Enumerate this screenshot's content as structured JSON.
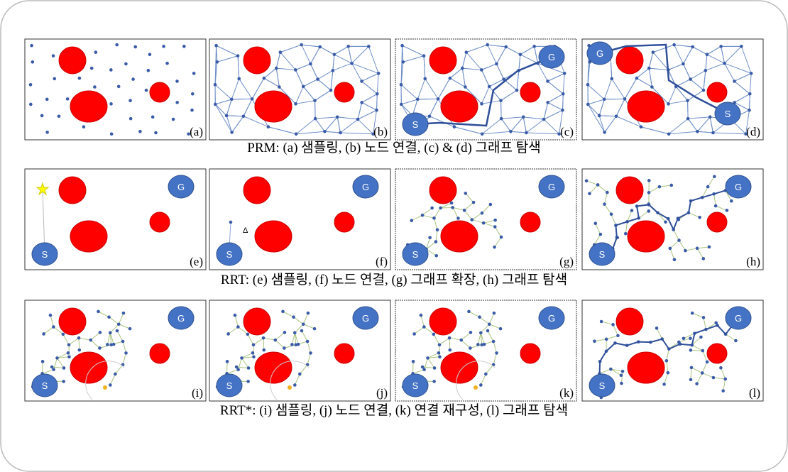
{
  "rows": [
    {
      "caption": "PRM: (a) 샘플링, (b) 노드 연결, (c) & (d) 그래프 탐색",
      "panels": [
        {
          "label": "(a)"
        },
        {
          "label": "(b)"
        },
        {
          "label": "(c)",
          "start": "S",
          "goal": "G"
        },
        {
          "label": "(d)",
          "start": "S",
          "goal": "G"
        }
      ]
    },
    {
      "caption": "RRT: (e) 샘플링, (f) 노드 연결, (g) 그래프 확장, (h) 그래프 탐색",
      "panels": [
        {
          "label": "(e)",
          "start": "S",
          "goal": "G"
        },
        {
          "label": "(f)",
          "start": "S",
          "goal": "G",
          "step": "Δ"
        },
        {
          "label": "(g)",
          "start": "S",
          "goal": "G"
        },
        {
          "label": "(h)",
          "start": "S",
          "goal": "G"
        }
      ]
    },
    {
      "caption": "RRT*: (i) 샘플링, (j) 노드 연결, (k) 연결 재구성, (l) 그래프 탐색",
      "panels": [
        {
          "label": "(i)",
          "start": "S",
          "goal": "G"
        },
        {
          "label": "(j)",
          "start": "S",
          "goal": "G"
        },
        {
          "label": "(k)",
          "start": "S",
          "goal": "G"
        },
        {
          "label": "(l)",
          "start": "S",
          "goal": "G"
        }
      ]
    }
  ]
}
